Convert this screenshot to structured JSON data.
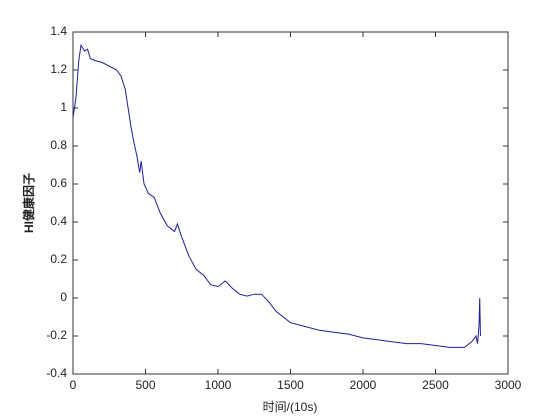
{
  "chart_data": {
    "type": "line",
    "x_label": "时间/(10s)",
    "y_label": "HI健康因子",
    "x": [
      0,
      20,
      40,
      55,
      80,
      100,
      120,
      150,
      200,
      250,
      300,
      330,
      360,
      380,
      400,
      420,
      440,
      460,
      470,
      490,
      520,
      560,
      600,
      650,
      700,
      720,
      750,
      800,
      850,
      900,
      950,
      1000,
      1050,
      1100,
      1150,
      1200,
      1250,
      1300,
      1350,
      1400,
      1500,
      1600,
      1700,
      1800,
      1900,
      2000,
      2100,
      2200,
      2300,
      2400,
      2500,
      2600,
      2700,
      2750,
      2780,
      2790,
      2800,
      2805,
      2810
    ],
    "series": [
      {
        "color": "#1f1f9e",
        "values": [
          0.95,
          1.05,
          1.25,
          1.33,
          1.3,
          1.31,
          1.26,
          1.25,
          1.24,
          1.22,
          1.2,
          1.17,
          1.1,
          1.0,
          0.9,
          0.82,
          0.75,
          0.66,
          0.72,
          0.6,
          0.55,
          0.53,
          0.45,
          0.38,
          0.35,
          0.39,
          0.32,
          0.22,
          0.15,
          0.12,
          0.07,
          0.06,
          0.09,
          0.05,
          0.02,
          0.01,
          0.02,
          0.02,
          -0.02,
          -0.07,
          -0.13,
          -0.15,
          -0.17,
          -0.18,
          -0.19,
          -0.21,
          -0.22,
          -0.23,
          -0.24,
          -0.24,
          -0.25,
          -0.26,
          -0.26,
          -0.23,
          -0.2,
          -0.24,
          -0.15,
          0.0,
          -0.2
        ]
      }
    ],
    "xlim": [
      0,
      3000
    ],
    "xticks": [
      0,
      500,
      1000,
      1500,
      2000,
      2500,
      3000
    ],
    "ylim": [
      -0.4,
      1.4
    ],
    "yticks": [
      -0.4,
      -0.2,
      0,
      0.2,
      0.4,
      0.6,
      0.8,
      1,
      1.2,
      1.4
    ]
  }
}
